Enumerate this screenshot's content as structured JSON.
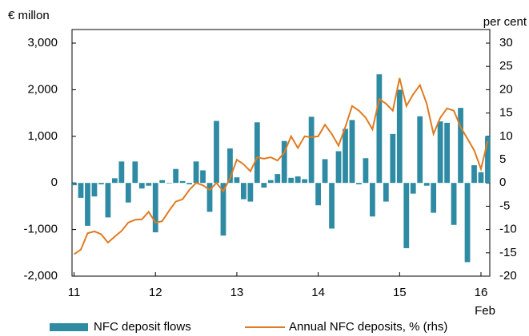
{
  "chart_data": {
    "type": "bar-line",
    "y_label": "€ millon",
    "y2_label": "per cent",
    "x_note": "Feb",
    "x": [
      0,
      1,
      2,
      3,
      4,
      5,
      6,
      7,
      8,
      9,
      10,
      11,
      12,
      13,
      14,
      15,
      16,
      17,
      18,
      19,
      20,
      21,
      22,
      23,
      24,
      25,
      26,
      27,
      28,
      29,
      30,
      31,
      32,
      33,
      34,
      35,
      36,
      37,
      38,
      39,
      40,
      41,
      42,
      43,
      44,
      45,
      46,
      47,
      48,
      49,
      50,
      51,
      52,
      53,
      54,
      55,
      56,
      57,
      58,
      59,
      60,
      61
    ],
    "xlim": [
      -0.3,
      61.3
    ],
    "xticks": [
      {
        "value": 0,
        "label": "11"
      },
      {
        "value": 12,
        "label": "12"
      },
      {
        "value": 24,
        "label": "13"
      },
      {
        "value": 36,
        "label": "14"
      },
      {
        "value": 48,
        "label": "15"
      },
      {
        "value": 60,
        "label": "16"
      }
    ],
    "ylim": [
      -2000,
      3000
    ],
    "yticks": [
      {
        "value": -2000,
        "label": "-2,000"
      },
      {
        "value": -1000,
        "label": "-1,000"
      },
      0,
      {
        "value": 1000,
        "label": "1,000"
      },
      {
        "value": 2000,
        "label": "2,000"
      },
      {
        "value": 3000,
        "label": "3,000"
      }
    ],
    "y2lim": [
      -20,
      30
    ],
    "y2ticks": [
      -20,
      -15,
      -10,
      -5,
      0,
      5,
      10,
      15,
      20,
      25,
      30
    ],
    "series": [
      {
        "name": "NFC deposit flows",
        "type": "bar",
        "color": "#2e8ba3",
        "values": [
          -50,
          -320,
          -920,
          -290,
          -30,
          -740,
          100,
          460,
          -420,
          460,
          -120,
          -60,
          -1060,
          60,
          -10,
          300,
          40,
          -30,
          460,
          270,
          -620,
          1330,
          -1130,
          740,
          120,
          -350,
          -400,
          1300,
          -100,
          60,
          190,
          900,
          110,
          140,
          80,
          1420,
          -480,
          510,
          -980,
          680,
          1160,
          1350,
          -30,
          530,
          -720,
          2330,
          -400,
          1050,
          2000,
          -1400,
          -230,
          1430,
          -60,
          -640,
          1320,
          1290,
          -900,
          1610,
          -1700,
          380,
          230,
          1000
        ]
      },
      {
        "name": "Annual NFC deposits, % (rhs)",
        "type": "line",
        "axis": "y2",
        "color": "#e07b20",
        "values": [
          -15.3,
          -14.3,
          -10.8,
          -10.4,
          -11,
          -12.8,
          -11.5,
          -10.3,
          -8.5,
          -7.9,
          -7.8,
          -6.2,
          -8.5,
          -8.2,
          -6,
          -4,
          -3.5,
          -1.5,
          0,
          -0.5,
          -1.5,
          0,
          -1.8,
          1,
          5,
          4,
          2.5,
          5.5,
          5.2,
          5.5,
          4.8,
          6.5,
          10,
          7.5,
          10,
          9.8,
          10,
          12.5,
          10.5,
          8,
          12,
          16.5,
          15.5,
          14,
          11.5,
          18,
          17,
          15.5,
          22.5,
          16.5,
          19,
          21,
          17,
          10.5,
          14,
          16,
          15.5,
          12,
          9.5,
          7,
          3,
          9
        ]
      }
    ]
  }
}
